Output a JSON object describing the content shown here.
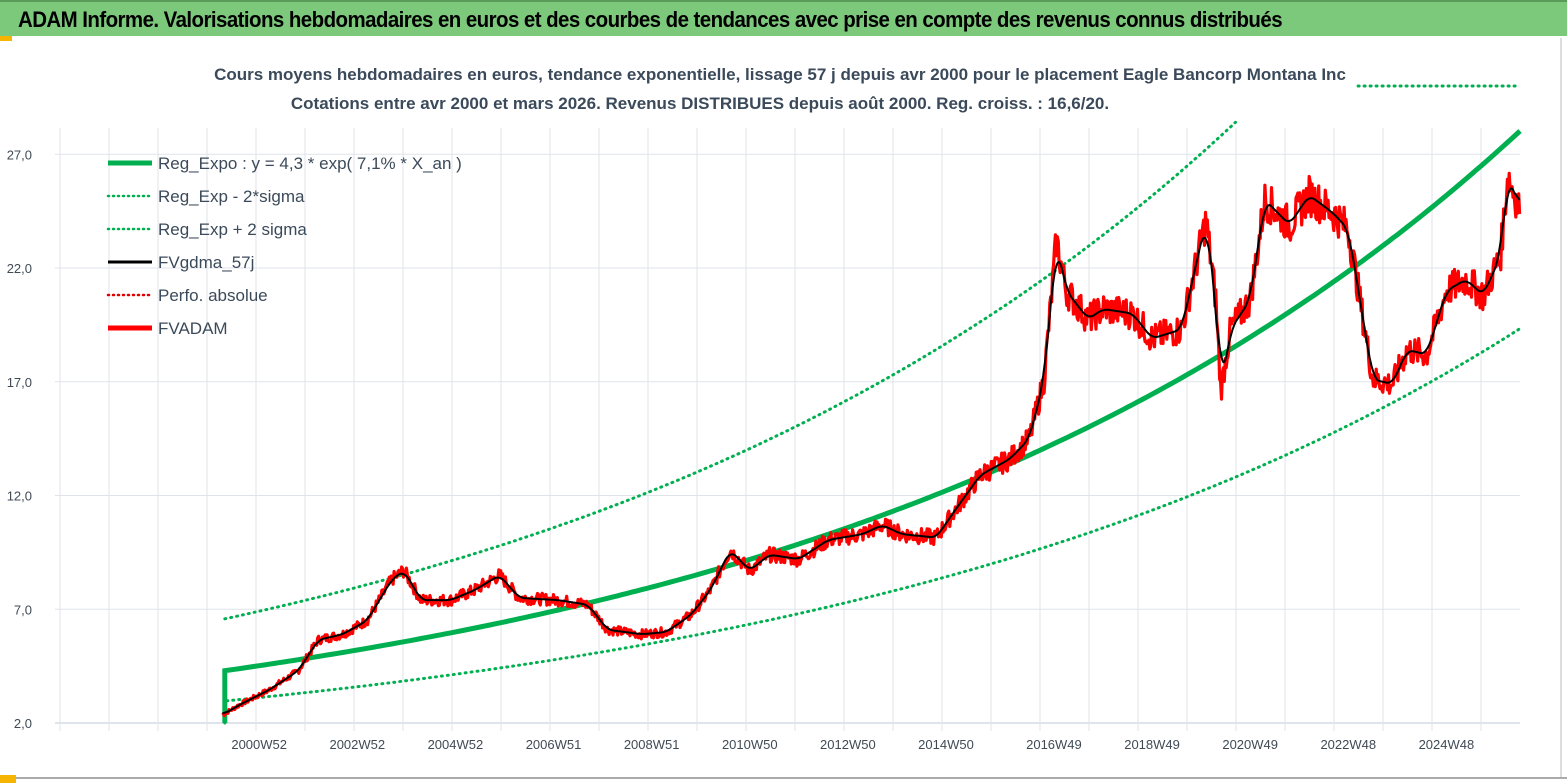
{
  "banner": {
    "title": "ADAM Informe. Valorisations hebdomadaires en euros et des courbes de tendances avec prise en compte des revenus connus distribués"
  },
  "chart_data": {
    "type": "line",
    "title": "Cours moyens hebdomadaires en euros, tendance exponentielle, lissage 57 j depuis avr 2000 pour le placement Eagle Bancorp Montana Inc",
    "subtitle": "Cotations entre avr 2000 et mars 2026. Revenus DISTRIBUES depuis août 2000. Reg. croiss. : 16,6/20.",
    "xlabel": "",
    "ylabel": "",
    "xlim": [
      1996.94,
      2026.7
    ],
    "ylim": [
      2,
      30
    ],
    "y_ticks": [
      "2,0",
      "7,0",
      "12,0",
      "17,0",
      "22,0",
      "27,0"
    ],
    "y_tick_values": [
      2,
      7,
      12,
      17,
      22,
      27
    ],
    "x_tick_labels": [
      "2000W52",
      "2002W52",
      "2004W52",
      "2006W51",
      "2008W51",
      "2010W50",
      "2012W50",
      "2014W50",
      "2016W49",
      "2018W49",
      "2020W49",
      "2022W48",
      "2024W48"
    ],
    "x_tick_values": [
      2001,
      2003,
      2005,
      2007,
      2009,
      2011,
      2013,
      2015,
      2017.2,
      2019.2,
      2021.2,
      2023.2,
      2025.2
    ],
    "grid": true,
    "legend_position": "top-left",
    "regression": {
      "a": 4.3,
      "rate": 0.071,
      "start": 2000.3,
      "upper_factor": 1.53,
      "lower_factor": 0.69
    },
    "legend": [
      {
        "label": "Reg_Expo : y = 4,3 * exp( 7,1% *  X_an )",
        "color": "#00b050",
        "style": "solid-thick"
      },
      {
        "label": "Reg_Exp - 2*sigma",
        "color": "#00b050",
        "style": "dotted"
      },
      {
        "label": "Reg_Exp + 2 sigma",
        "color": "#00b050",
        "style": "dotted"
      },
      {
        "label": "FVgdma_57j",
        "color": "#000000",
        "style": "solid"
      },
      {
        "label": "Perfo. absolue",
        "color": "#e00000",
        "style": "dotted"
      },
      {
        "label": "FVADAM",
        "color": "#ff0000",
        "style": "solid-thick"
      }
    ],
    "series": [
      {
        "name": "FVADAM",
        "x": [
          2000.25,
          2000.6,
          2001.2,
          2001.8,
          2002.2,
          2002.7,
          2003.2,
          2003.7,
          2003.95,
          2004.3,
          2004.9,
          2005.4,
          2005.9,
          2006.3,
          2007.1,
          2007.7,
          2008.1,
          2008.8,
          2009.3,
          2009.8,
          2010.2,
          2010.6,
          2011.0,
          2011.4,
          2012.0,
          2012.6,
          2013.3,
          2013.7,
          2014.1,
          2014.8,
          2015.2,
          2015.7,
          2016.3,
          2016.7,
          2017.0,
          2017.25,
          2017.45,
          2017.9,
          2018.2,
          2018.8,
          2019.2,
          2019.8,
          2020.3,
          2020.5,
          2020.6,
          2020.8,
          2021.2,
          2021.5,
          2022.0,
          2022.4,
          2022.9,
          2023.2,
          2023.4,
          2023.7,
          2024.1,
          2024.4,
          2024.8,
          2025.2,
          2025.6,
          2025.95,
          2026.3,
          2026.45,
          2026.7
        ],
        "values": [
          2.35,
          2.8,
          3.45,
          4.3,
          5.65,
          5.9,
          6.5,
          8.3,
          8.7,
          7.4,
          7.4,
          7.85,
          8.5,
          7.5,
          7.4,
          7.2,
          6.1,
          5.9,
          6.0,
          6.75,
          7.85,
          9.6,
          8.7,
          9.4,
          9.2,
          10.05,
          10.3,
          10.7,
          10.3,
          10.15,
          11.4,
          12.9,
          13.6,
          14.5,
          17.1,
          23.2,
          21.0,
          19.75,
          20.2,
          20.0,
          18.9,
          19.3,
          24.1,
          20.6,
          16.6,
          19.3,
          20.6,
          25.0,
          23.9,
          25.2,
          24.4,
          23.7,
          21.1,
          17.1,
          16.9,
          18.4,
          18.2,
          21.0,
          21.5,
          20.8,
          22.5,
          26.1,
          24.6
        ]
      }
    ]
  }
}
